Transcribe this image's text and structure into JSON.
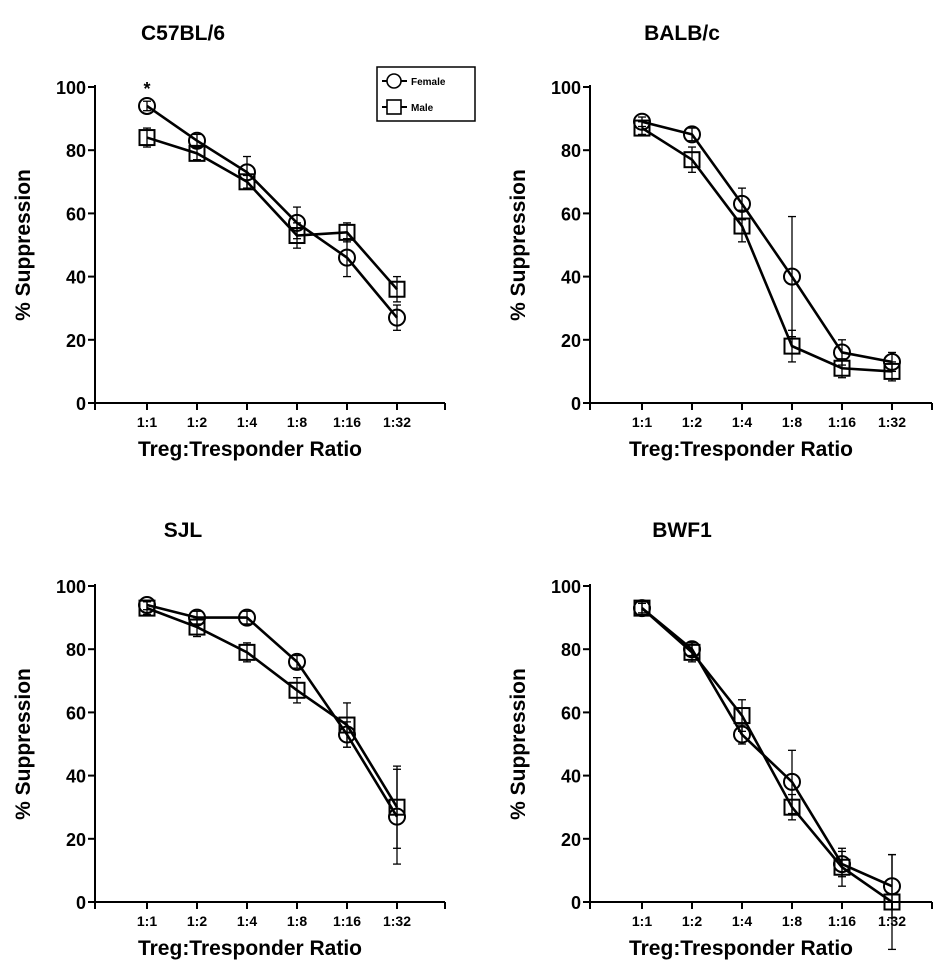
{
  "chart_data": [
    {
      "type": "line",
      "title": "C57BL/6",
      "xlabel": "Treg:Tresponder Ratio",
      "ylabel": "% Suppression",
      "categories": [
        "1:1",
        "1:2",
        "1:4",
        "1:8",
        "1:16",
        "1:32"
      ],
      "yticks": [
        0,
        20,
        40,
        60,
        80,
        100
      ],
      "ylim": [
        0,
        100
      ],
      "legend": {
        "position": "top-right",
        "entries": [
          "Female",
          "Male"
        ]
      },
      "annotations": [
        {
          "text": "*",
          "category": "1:1"
        }
      ],
      "series": [
        {
          "name": "Female",
          "marker": "circle",
          "values": [
            94,
            83,
            73,
            57,
            46,
            27
          ],
          "errors": [
            1.5,
            2,
            5,
            5,
            6,
            4
          ]
        },
        {
          "name": "Male",
          "marker": "square",
          "values": [
            84,
            79,
            70,
            53,
            54,
            36
          ],
          "errors": [
            3,
            2,
            2,
            4,
            3,
            4
          ]
        }
      ]
    },
    {
      "type": "line",
      "title": "BALB/c",
      "xlabel": "Treg:Tresponder Ratio",
      "ylabel": "% Suppression",
      "categories": [
        "1:1",
        "1:2",
        "1:4",
        "1:8",
        "1:16",
        "1:32"
      ],
      "yticks": [
        0,
        20,
        40,
        60,
        80,
        100
      ],
      "ylim": [
        0,
        100
      ],
      "series": [
        {
          "name": "Female",
          "marker": "circle",
          "values": [
            89,
            85,
            63,
            40,
            16,
            13
          ],
          "errors": [
            1.5,
            2,
            5,
            19,
            4,
            3
          ]
        },
        {
          "name": "Male",
          "marker": "square",
          "values": [
            87,
            77,
            56,
            18,
            11,
            10
          ],
          "errors": [
            2,
            4,
            5,
            5,
            3,
            3
          ]
        }
      ]
    },
    {
      "type": "line",
      "title": "SJL",
      "xlabel": "Treg:Tresponder Ratio",
      "ylabel": "% Suppression",
      "categories": [
        "1:1",
        "1:2",
        "1:4",
        "1:8",
        "1:16",
        "1:32"
      ],
      "yticks": [
        0,
        20,
        40,
        60,
        80,
        100
      ],
      "ylim": [
        0,
        100
      ],
      "series": [
        {
          "name": "Female",
          "marker": "circle",
          "values": [
            94,
            90,
            90,
            76,
            53,
            27
          ],
          "errors": [
            1.5,
            2,
            2,
            2,
            4,
            15
          ]
        },
        {
          "name": "Male",
          "marker": "square",
          "values": [
            93,
            87,
            79,
            67,
            56,
            30
          ],
          "errors": [
            2,
            3,
            3,
            4,
            7,
            13
          ]
        }
      ]
    },
    {
      "type": "line",
      "title": "BWF1",
      "xlabel": "Treg:Tresponder Ratio",
      "ylabel": "% Suppression",
      "categories": [
        "1:1",
        "1:2",
        "1:4",
        "1:8",
        "1:16",
        "1:32"
      ],
      "yticks": [
        0,
        20,
        40,
        60,
        80,
        100
      ],
      "ylim": [
        0,
        100
      ],
      "series": [
        {
          "name": "Female",
          "marker": "circle",
          "values": [
            93,
            80,
            53,
            38,
            12,
            5
          ],
          "errors": [
            1.5,
            2,
            3,
            10,
            4,
            10
          ]
        },
        {
          "name": "Male",
          "marker": "square",
          "values": [
            93,
            79,
            59,
            30,
            11,
            0
          ],
          "errors": [
            2,
            3,
            5,
            4,
            6,
            15
          ]
        }
      ]
    }
  ]
}
